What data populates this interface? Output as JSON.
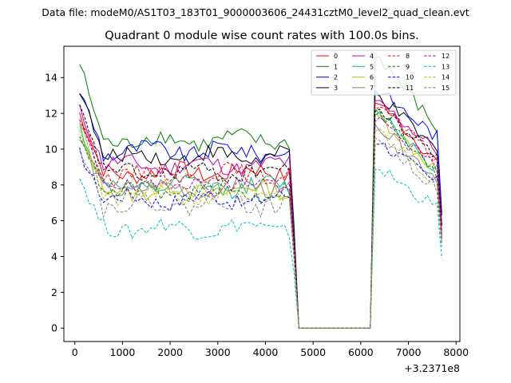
{
  "chart_data": {
    "type": "line",
    "suptitle": "Data file: modeM0/AS1T03_183T01_9000003606_24431cztM0_level2_quad_clean.evt",
    "title": "Quadrant 0 module wise count rates with 100.0s bins.",
    "xlabel": "",
    "ylabel": "",
    "x_offset_label": "+3.2371e8",
    "xlim": [
      -230,
      8080
    ],
    "ylim": [
      -0.75,
      15.75
    ],
    "xticks": [
      0,
      1000,
      2000,
      3000,
      4000,
      5000,
      6000,
      7000,
      8000
    ],
    "yticks": [
      0,
      2,
      4,
      6,
      8,
      10,
      12,
      14
    ],
    "bin_width": 100,
    "first_bin": 100,
    "last_bin": 7700,
    "gap_start": 4650,
    "gap_end": 6150,
    "legend_position": "top-right",
    "legend_columns": 4,
    "series": [
      {
        "name": "0",
        "color": "#ff0000",
        "style": "solid",
        "start": 12.0,
        "plateau": 8.7,
        "recover_peak": 12.6,
        "end": 9.0
      },
      {
        "name": "1",
        "color": "#008000",
        "style": "solid",
        "start": 14.8,
        "plateau": 10.5,
        "recover_peak": 15.1,
        "end": 10.8
      },
      {
        "name": "2",
        "color": "#0000ff",
        "style": "solid",
        "start": 13.3,
        "plateau": 9.9,
        "recover_peak": 13.2,
        "end": 10.5
      },
      {
        "name": "3",
        "color": "#000000",
        "style": "solid",
        "start": 13.4,
        "plateau": 9.6,
        "recover_peak": 13.0,
        "end": 9.6
      },
      {
        "name": "4",
        "color": "#bf00bf",
        "style": "solid",
        "start": 12.2,
        "plateau": 9.1,
        "recover_peak": 12.6,
        "end": 9.7
      },
      {
        "name": "5",
        "color": "#00bf7f",
        "style": "solid",
        "start": 11.3,
        "plateau": 7.9,
        "recover_peak": 12.1,
        "end": 8.6
      },
      {
        "name": "6",
        "color": "#bfbf00",
        "style": "solid",
        "start": 11.4,
        "plateau": 7.7,
        "recover_peak": 11.8,
        "end": 8.5
      },
      {
        "name": "7",
        "color": "#808080",
        "style": "solid",
        "start": 10.6,
        "plateau": 7.8,
        "recover_peak": 11.2,
        "end": 8.2
      },
      {
        "name": "8",
        "color": "#ff0000",
        "style": "dashed",
        "start": 11.8,
        "plateau": 8.6,
        "recover_peak": 12.4,
        "end": 9.1
      },
      {
        "name": "9",
        "color": "#008000",
        "style": "dashed",
        "start": 11.0,
        "plateau": 7.6,
        "recover_peak": 12.0,
        "end": 8.2
      },
      {
        "name": "10",
        "color": "#0000ff",
        "style": "dashed",
        "start": 9.8,
        "plateau": 7.2,
        "recover_peak": 10.4,
        "end": 7.9
      },
      {
        "name": "11",
        "color": "#000000",
        "style": "dashed",
        "start": 12.3,
        "plateau": 8.7,
        "recover_peak": 12.2,
        "end": 9.4
      },
      {
        "name": "12",
        "color": "#bf00bf",
        "style": "dashed",
        "start": 11.6,
        "plateau": 8.0,
        "recover_peak": 11.6,
        "end": 8.7
      },
      {
        "name": "13",
        "color": "#00bfbf",
        "style": "dashed",
        "start": 8.4,
        "plateau": 5.6,
        "recover_peak": 8.9,
        "end": 6.5
      },
      {
        "name": "14",
        "color": "#bfbf00",
        "style": "dashed",
        "start": 11.2,
        "plateau": 7.4,
        "recover_peak": 11.0,
        "end": 7.9
      },
      {
        "name": "15",
        "color": "#808080",
        "style": "dashed",
        "start": 10.2,
        "plateau": 6.9,
        "recover_peak": 10.6,
        "end": 7.6
      }
    ]
  }
}
